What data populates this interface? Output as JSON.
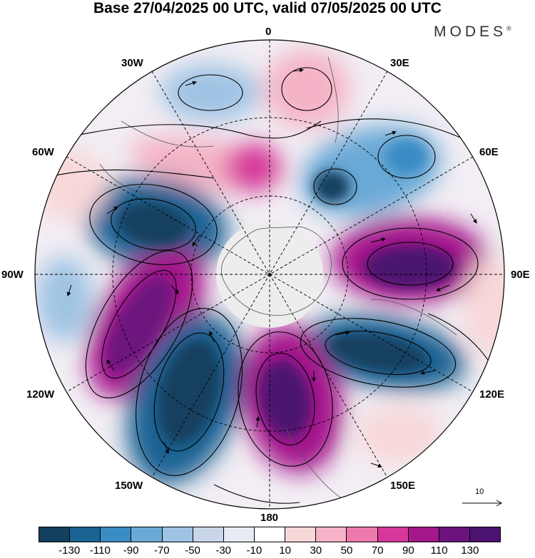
{
  "title": "Base 27/04/2025 00 UTC, valid 07/05/2025 00 UTC",
  "brand": "MODES",
  "brand_mark": "®",
  "map": {
    "projection": "north polar stereographic",
    "longitude_labels": {
      "top": "0",
      "top_right": "30E",
      "upper_right": "60E",
      "right": "90E",
      "lower_right": "120E",
      "bottom_right": "150E",
      "bottom": "180",
      "bottom_left": "150W",
      "lower_left": "120W",
      "left": "90W",
      "upper_left": "60W",
      "top_left": "30W"
    },
    "vector_reference": "10"
  },
  "colorbar": {
    "ticks": [
      "-130",
      "-110",
      "-90",
      "-70",
      "-50",
      "-30",
      "-10",
      "10",
      "30",
      "50",
      "70",
      "90",
      "110",
      "130"
    ],
    "colors": [
      "#143f5e",
      "#1a6494",
      "#3a8cc4",
      "#6aa9d6",
      "#9fc3e3",
      "#c9d6ea",
      "#e8eaf3",
      "#ffffff",
      "#f8d7d8",
      "#f4b3c6",
      "#ee79ad",
      "#d7379a",
      "#a4188c",
      "#6c137e",
      "#4c1270"
    ]
  }
}
